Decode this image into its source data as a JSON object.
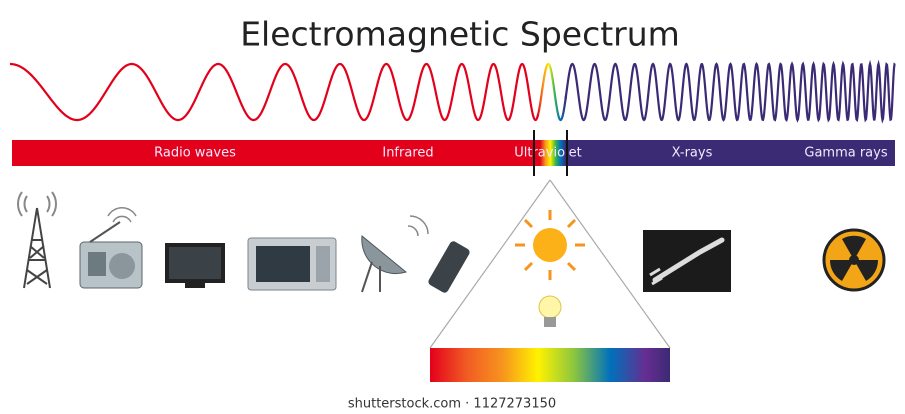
{
  "title": "Electromagnetic Spectrum",
  "bands": [
    "Radio waves",
    "Infrared",
    "Ultraviolet",
    "X-rays",
    "Gamma rays"
  ],
  "watermark": "shutterstock.com · 1127273150"
}
